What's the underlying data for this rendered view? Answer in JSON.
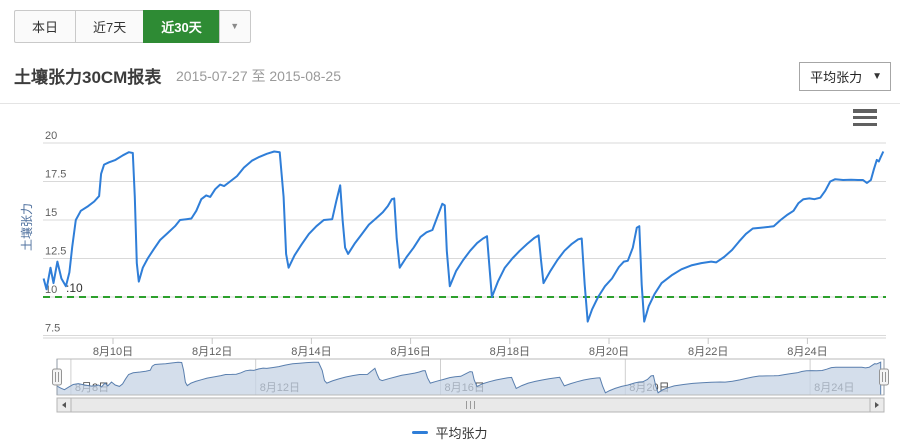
{
  "toolbar": {
    "tabs": [
      {
        "label": "本日",
        "active": false
      },
      {
        "label": "近7天",
        "active": false
      },
      {
        "label": "近30天",
        "active": true
      }
    ],
    "caret": "▼"
  },
  "header": {
    "title": "土壤张力30CM报表",
    "date_range": "2015-07-27 至 2015-08-25",
    "series_select_value": "平均张力",
    "select_caret": "▼"
  },
  "menu_icon": "hamburger-menu",
  "colors": {
    "accent_green": "#2e8b34",
    "series_blue": "#2f7ed8",
    "plotline_green": "#2ca02c",
    "grid": "#d9d9d9",
    "axis_label": "#606060",
    "nav_fill": "#c6d3e4",
    "nav_line": "#5a7fae",
    "axis_title": "#4d6f9d"
  },
  "chart_data": {
    "type": "line",
    "title": "",
    "xlabel": "",
    "ylabel": "土壤张力",
    "ylim": [
      7.5,
      20.5
    ],
    "y_ticks": [
      7.5,
      10,
      12.5,
      15,
      17.5,
      20
    ],
    "y_tick_labels": [
      "7.5",
      "10",
      "12.5",
      "15",
      "17.5",
      "20"
    ],
    "x_tick_days": [
      10,
      12,
      14,
      16,
      18,
      20,
      22,
      24
    ],
    "x_tick_labels": [
      "8月10日",
      "8月12日",
      "8月14日",
      "8月16日",
      "8月18日",
      "8月20日",
      "8月22日",
      "8月24日"
    ],
    "grid": true,
    "legend_position": "bottom-center",
    "plotline": {
      "value": 10,
      "label": ":10"
    },
    "series": [
      {
        "name": "平均张力",
        "points": [
          [
            8.6,
            11.2
          ],
          [
            8.66,
            10.5
          ],
          [
            8.74,
            11.9
          ],
          [
            8.8,
            10.9
          ],
          [
            8.88,
            12.3
          ],
          [
            8.96,
            11.2
          ],
          [
            9.05,
            10.7
          ],
          [
            9.12,
            11.6
          ],
          [
            9.18,
            13.3
          ],
          [
            9.25,
            15.0
          ],
          [
            9.35,
            15.6
          ],
          [
            9.5,
            15.9
          ],
          [
            9.62,
            16.2
          ],
          [
            9.72,
            16.55
          ],
          [
            9.76,
            18.0
          ],
          [
            9.82,
            18.6
          ],
          [
            9.92,
            18.75
          ],
          [
            10.05,
            18.9
          ],
          [
            10.2,
            19.2
          ],
          [
            10.32,
            19.4
          ],
          [
            10.4,
            19.35
          ],
          [
            10.44,
            16.5
          ],
          [
            10.48,
            12.2
          ],
          [
            10.52,
            11.0
          ],
          [
            10.6,
            11.9
          ],
          [
            10.7,
            12.5
          ],
          [
            10.82,
            13.1
          ],
          [
            10.95,
            13.7
          ],
          [
            11.1,
            14.15
          ],
          [
            11.25,
            14.6
          ],
          [
            11.35,
            15.0
          ],
          [
            11.48,
            15.05
          ],
          [
            11.58,
            15.1
          ],
          [
            11.68,
            15.6
          ],
          [
            11.78,
            16.35
          ],
          [
            11.88,
            16.6
          ],
          [
            11.96,
            16.5
          ],
          [
            12.06,
            17.0
          ],
          [
            12.16,
            17.3
          ],
          [
            12.24,
            17.2
          ],
          [
            12.36,
            17.5
          ],
          [
            12.5,
            17.85
          ],
          [
            12.64,
            18.4
          ],
          [
            12.8,
            18.85
          ],
          [
            12.95,
            19.1
          ],
          [
            13.1,
            19.3
          ],
          [
            13.25,
            19.45
          ],
          [
            13.36,
            19.4
          ],
          [
            13.44,
            16.5
          ],
          [
            13.49,
            12.8
          ],
          [
            13.54,
            11.9
          ],
          [
            13.66,
            12.7
          ],
          [
            13.8,
            13.4
          ],
          [
            13.95,
            14.1
          ],
          [
            14.1,
            14.6
          ],
          [
            14.25,
            15.0
          ],
          [
            14.42,
            15.05
          ],
          [
            14.5,
            16.2
          ],
          [
            14.58,
            17.25
          ],
          [
            14.63,
            15.0
          ],
          [
            14.68,
            13.2
          ],
          [
            14.74,
            12.8
          ],
          [
            14.88,
            13.5
          ],
          [
            15.02,
            14.1
          ],
          [
            15.16,
            14.7
          ],
          [
            15.3,
            15.1
          ],
          [
            15.44,
            15.5
          ],
          [
            15.54,
            15.9
          ],
          [
            15.62,
            16.35
          ],
          [
            15.67,
            16.4
          ],
          [
            15.72,
            13.8
          ],
          [
            15.78,
            11.9
          ],
          [
            15.92,
            12.6
          ],
          [
            16.06,
            13.2
          ],
          [
            16.2,
            13.9
          ],
          [
            16.32,
            14.2
          ],
          [
            16.44,
            14.35
          ],
          [
            16.55,
            15.3
          ],
          [
            16.64,
            16.05
          ],
          [
            16.69,
            15.95
          ],
          [
            16.73,
            13.0
          ],
          [
            16.79,
            10.7
          ],
          [
            16.92,
            11.7
          ],
          [
            17.06,
            12.4
          ],
          [
            17.2,
            13.0
          ],
          [
            17.34,
            13.5
          ],
          [
            17.46,
            13.8
          ],
          [
            17.54,
            13.95
          ],
          [
            17.59,
            11.9
          ],
          [
            17.64,
            10.0
          ],
          [
            17.76,
            11.0
          ],
          [
            17.9,
            11.9
          ],
          [
            18.05,
            12.5
          ],
          [
            18.2,
            13.0
          ],
          [
            18.35,
            13.45
          ],
          [
            18.5,
            13.85
          ],
          [
            18.58,
            14.0
          ],
          [
            18.63,
            12.4
          ],
          [
            18.68,
            10.9
          ],
          [
            18.82,
            11.7
          ],
          [
            18.96,
            12.4
          ],
          [
            19.1,
            13.0
          ],
          [
            19.25,
            13.45
          ],
          [
            19.38,
            13.75
          ],
          [
            19.45,
            13.8
          ],
          [
            19.51,
            10.8
          ],
          [
            19.57,
            8.4
          ],
          [
            19.66,
            9.2
          ],
          [
            19.78,
            10.0
          ],
          [
            19.92,
            10.7
          ],
          [
            20.06,
            11.2
          ],
          [
            20.2,
            11.95
          ],
          [
            20.3,
            12.3
          ],
          [
            20.38,
            12.35
          ],
          [
            20.48,
            13.2
          ],
          [
            20.56,
            14.5
          ],
          [
            20.61,
            14.6
          ],
          [
            20.66,
            10.8
          ],
          [
            20.71,
            8.4
          ],
          [
            20.8,
            9.4
          ],
          [
            20.92,
            10.2
          ],
          [
            21.06,
            10.9
          ],
          [
            21.26,
            11.4
          ],
          [
            21.46,
            11.8
          ],
          [
            21.66,
            12.05
          ],
          [
            21.86,
            12.2
          ],
          [
            22.06,
            12.3
          ],
          [
            22.16,
            12.25
          ],
          [
            22.32,
            12.6
          ],
          [
            22.48,
            13.05
          ],
          [
            22.62,
            13.6
          ],
          [
            22.76,
            14.1
          ],
          [
            22.9,
            14.45
          ],
          [
            23.06,
            14.5
          ],
          [
            23.22,
            14.55
          ],
          [
            23.32,
            14.6
          ],
          [
            23.46,
            15.0
          ],
          [
            23.6,
            15.35
          ],
          [
            23.72,
            15.6
          ],
          [
            23.82,
            16.1
          ],
          [
            23.92,
            16.35
          ],
          [
            24.04,
            16.4
          ],
          [
            24.14,
            16.35
          ],
          [
            24.26,
            16.45
          ],
          [
            24.36,
            16.9
          ],
          [
            24.46,
            17.5
          ],
          [
            24.56,
            17.65
          ],
          [
            24.72,
            17.6
          ],
          [
            24.88,
            17.62
          ],
          [
            25.02,
            17.6
          ],
          [
            25.12,
            17.6
          ],
          [
            25.2,
            17.4
          ],
          [
            25.28,
            17.6
          ],
          [
            25.34,
            18.3
          ],
          [
            25.4,
            18.9
          ],
          [
            25.44,
            18.8
          ],
          [
            25.48,
            19.1
          ],
          [
            25.53,
            19.45
          ]
        ]
      }
    ],
    "navigator": {
      "x_tick_days": [
        8,
        12,
        16,
        20,
        24
      ],
      "x_tick_labels": [
        "8月8日",
        "8月12日",
        "8月16日",
        "8月20日",
        "8月24日"
      ],
      "prefix_points": [
        [
          7.7,
          10.8
        ],
        [
          7.78,
          10.1
        ],
        [
          7.86,
          9.5
        ],
        [
          7.95,
          10.4
        ],
        [
          8.05,
          11.4
        ],
        [
          8.16,
          11.7
        ],
        [
          8.3,
          11.2
        ],
        [
          8.45,
          10.8
        ],
        [
          8.55,
          11.0
        ]
      ]
    },
    "legend": {
      "label": "平均张力"
    }
  }
}
